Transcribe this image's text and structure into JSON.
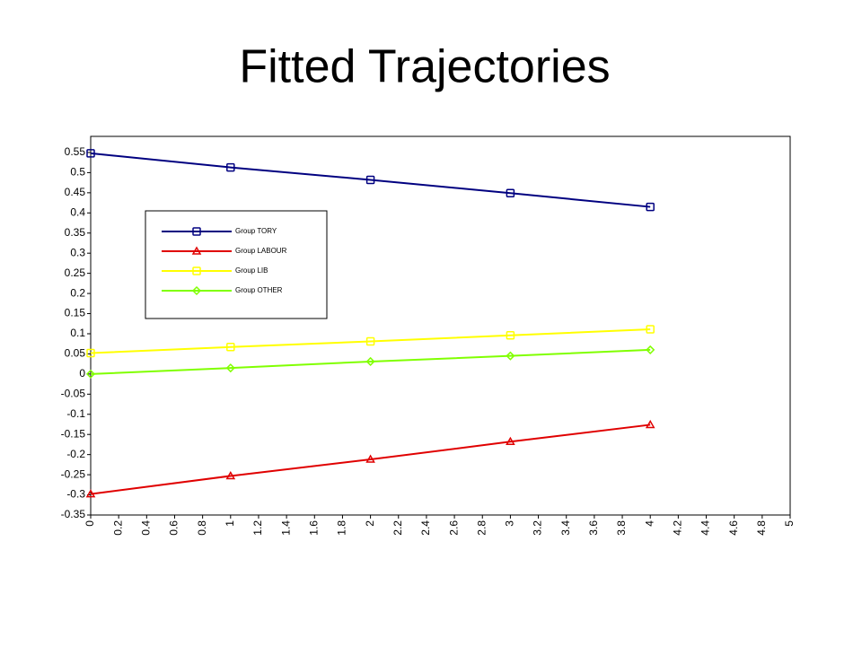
{
  "chart_data": {
    "type": "line",
    "title": "Fitted Trajectories",
    "x": [
      0,
      1,
      2,
      3,
      4
    ],
    "series": [
      {
        "name": "Group TORY",
        "color": "#000080",
        "marker": "square",
        "values": [
          0.548,
          0.513,
          0.482,
          0.449,
          0.415
        ]
      },
      {
        "name": "Group LABOUR",
        "color": "#e00000",
        "marker": "triangle",
        "values": [
          -0.298,
          -0.253,
          -0.212,
          -0.168,
          -0.126
        ]
      },
      {
        "name": "Group LIB",
        "color": "#ffff00",
        "marker": "square",
        "values": [
          0.052,
          0.067,
          0.081,
          0.096,
          0.111
        ]
      },
      {
        "name": "Group OTHER",
        "color": "#80ff00",
        "marker": "diamond",
        "values": [
          0.0,
          0.015,
          0.031,
          0.045,
          0.06
        ]
      }
    ],
    "xlim": [
      0,
      5
    ],
    "xticks": [
      0,
      0.2,
      0.4,
      0.6,
      0.8,
      1,
      1.2,
      1.4,
      1.6,
      1.8,
      2,
      2.2,
      2.4,
      2.6,
      2.8,
      3,
      3.2,
      3.4,
      3.6,
      3.8,
      4,
      4.2,
      4.4,
      4.6,
      4.8,
      5
    ],
    "ylim": [
      -0.35,
      0.59
    ],
    "yticks": [
      -0.35,
      -0.3,
      -0.25,
      -0.2,
      -0.15,
      -0.1,
      -0.05,
      0,
      0.05,
      0.1,
      0.15,
      0.2,
      0.25,
      0.3,
      0.35,
      0.4,
      0.45,
      0.5,
      0.55
    ],
    "legend": "upper-left",
    "grid": false
  }
}
